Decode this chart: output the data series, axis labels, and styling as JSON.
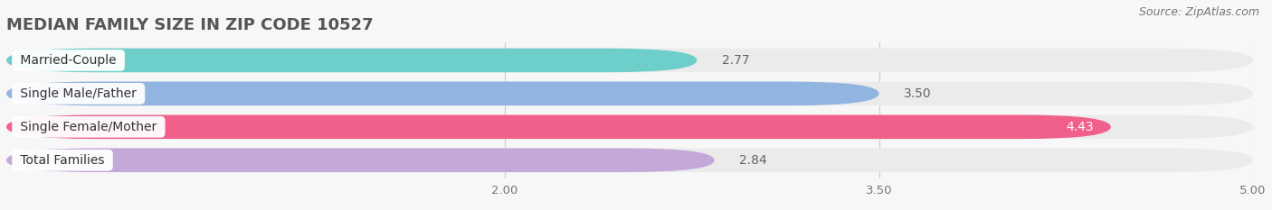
{
  "title": "MEDIAN FAMILY SIZE IN ZIP CODE 10527",
  "source": "Source: ZipAtlas.com",
  "categories": [
    "Married-Couple",
    "Single Male/Father",
    "Single Female/Mother",
    "Total Families"
  ],
  "values": [
    2.77,
    3.5,
    4.43,
    2.84
  ],
  "bar_colors": [
    "#6ecfca",
    "#92b4e0",
    "#f0608a",
    "#c4a8d8"
  ],
  "bg_bar_color": "#ebebeb",
  "xmin": 0.0,
  "xmax": 5.0,
  "xticks": [
    2.0,
    3.5,
    5.0
  ],
  "bar_height": 0.72,
  "figwidth": 14.06,
  "figheight": 2.33,
  "dpi": 100,
  "title_fontsize": 13,
  "label_fontsize": 10,
  "value_fontsize": 10,
  "tick_fontsize": 9.5,
  "source_fontsize": 9,
  "background_color": "#f7f7f7",
  "value_label_inside_idx": 2,
  "value_label_inside_color": "white",
  "value_label_outside_color": "#666666"
}
